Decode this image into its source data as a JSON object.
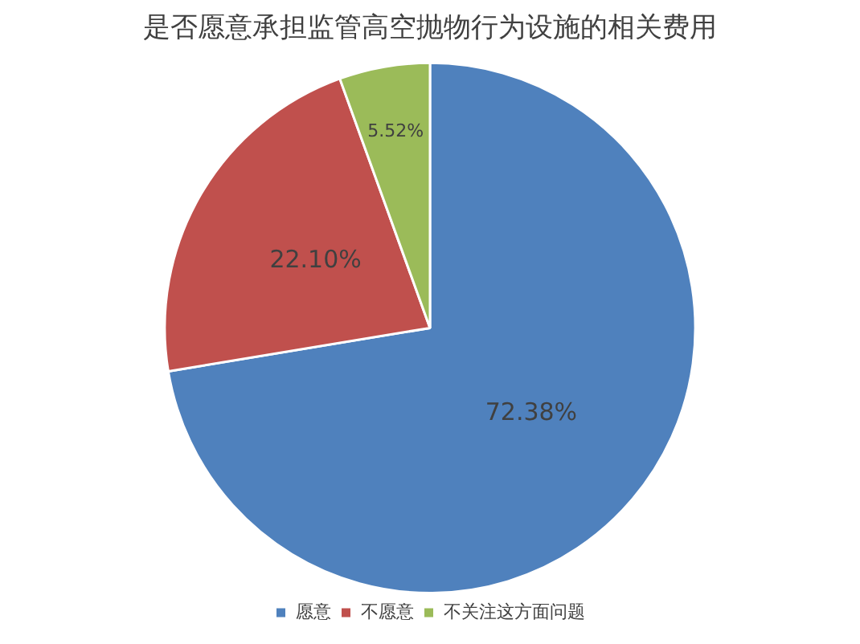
{
  "chart_data": {
    "type": "pie",
    "title": "是否愿意承担监管高空抛物行为设施的相关费用",
    "categories": [
      "愿意",
      "不愿意",
      "不关注这方面问题"
    ],
    "values": [
      72.38,
      22.1,
      5.52
    ],
    "colors": [
      "#4f81bd",
      "#c0504d",
      "#9bbb59"
    ],
    "value_labels": [
      "72.38%",
      "22.10%",
      "5.52%"
    ],
    "legend": "bottom"
  }
}
